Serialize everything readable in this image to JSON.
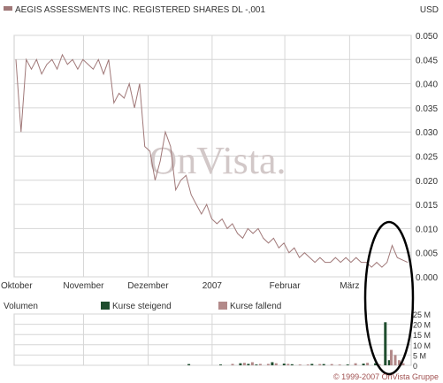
{
  "header": {
    "title": "AEGIS ASSESSMENTS INC. REGISTERED SHARES DL -,001",
    "currency": "USD"
  },
  "watermark": "OnVista.",
  "footer": "© 1999-2007 OnVista Gruppe",
  "volume_panel": {
    "title": "Volumen",
    "legend_up": "Kurse steigend",
    "legend_down": "Kurse fallend"
  },
  "colors": {
    "price_line": "#a07878",
    "up": "#1f4d2e",
    "down": "#b38a8a",
    "grid": "#d6d6d6",
    "panel_bg": "#ffffff",
    "annotation": "#000000"
  },
  "chart_data": [
    {
      "type": "line",
      "title": "AEGIS ASSESSMENTS INC. REGISTERED SHARES DL -,001",
      "ylabel": "USD",
      "ylim": [
        0,
        0.05
      ],
      "yticks": [
        "0.050",
        "0.045",
        "0.040",
        "0.035",
        "0.030",
        "0.025",
        "0.020",
        "0.015",
        "0.010",
        "0.005",
        "0.000"
      ],
      "xticks": [
        "Oktober",
        "November",
        "Dezember",
        "2007",
        "Februar",
        "März"
      ],
      "grid": true,
      "series": [
        {
          "values": [
            0.045,
            0.03,
            0.045,
            0.043,
            0.045,
            0.042,
            0.044,
            0.045,
            0.043,
            0.046,
            0.044,
            0.045,
            0.043,
            0.045,
            0.044,
            0.043,
            0.045,
            0.042,
            0.045,
            0.036,
            0.038,
            0.037,
            0.04,
            0.035,
            0.04,
            0.027,
            0.026,
            0.02,
            0.024,
            0.03,
            0.027,
            0.018,
            0.02,
            0.021,
            0.017,
            0.015,
            0.013,
            0.015,
            0.012,
            0.011,
            0.012,
            0.01,
            0.011,
            0.009,
            0.008,
            0.01,
            0.009,
            0.01,
            0.008,
            0.007,
            0.008,
            0.006,
            0.007,
            0.005,
            0.006,
            0.004,
            0.005,
            0.004,
            0.003,
            0.004,
            0.003,
            0.003,
            0.004,
            0.003,
            0.004,
            0.003,
            0.004,
            0.003,
            0.003,
            0.002,
            0.003,
            0.002,
            0.003,
            0.0065,
            0.004,
            0.0035,
            0.003
          ]
        }
      ]
    },
    {
      "type": "bar",
      "title": "Volumen",
      "ylim": [
        0,
        25
      ],
      "yticks": [
        "25 M",
        "20 M",
        "15 M",
        "10 M",
        "5 M",
        "0"
      ],
      "series": [
        {
          "name": "Kurse steigend",
          "points": [
            [
              0.44,
              0.6
            ],
            [
              0.52,
              0.4
            ],
            [
              0.57,
              1.0
            ],
            [
              0.59,
              0.7
            ],
            [
              0.61,
              0.4
            ],
            [
              0.65,
              1.5
            ],
            [
              0.68,
              0.8
            ],
            [
              0.7,
              0.5
            ],
            [
              0.75,
              0.7
            ],
            [
              0.78,
              0.6
            ],
            [
              0.84,
              0.4
            ],
            [
              0.88,
              0.8
            ],
            [
              0.91,
              1.0
            ],
            [
              0.935,
              21.0
            ],
            [
              0.945,
              2.5
            ]
          ]
        },
        {
          "name": "Kurse fallend",
          "points": [
            [
              0.55,
              0.7
            ],
            [
              0.58,
              1.2
            ],
            [
              0.6,
              1.5
            ],
            [
              0.62,
              0.7
            ],
            [
              0.64,
              0.7
            ],
            [
              0.66,
              1.0
            ],
            [
              0.69,
              0.7
            ],
            [
              0.72,
              0.4
            ],
            [
              0.74,
              0.4
            ],
            [
              0.77,
              0.6
            ],
            [
              0.8,
              0.6
            ],
            [
              0.82,
              0.4
            ],
            [
              0.86,
              1.0
            ],
            [
              0.89,
              1.2
            ],
            [
              0.92,
              0.5
            ],
            [
              0.95,
              7.5
            ],
            [
              0.96,
              5.0
            ],
            [
              0.97,
              2.5
            ],
            [
              0.98,
              1.0
            ]
          ]
        }
      ]
    }
  ]
}
